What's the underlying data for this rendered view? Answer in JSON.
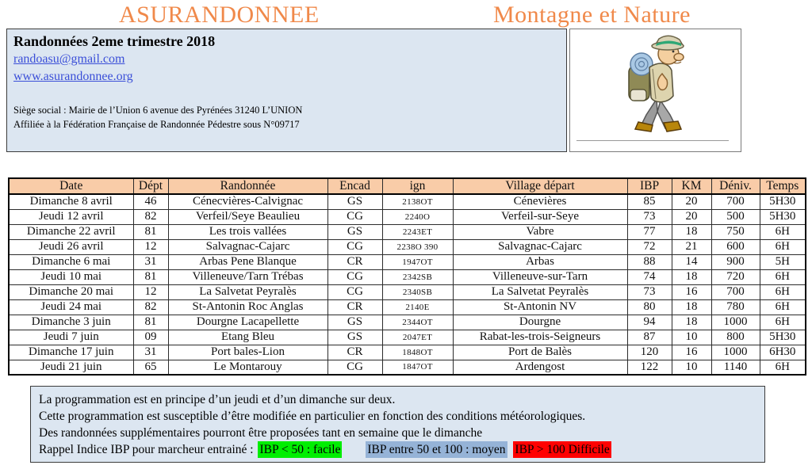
{
  "header": {
    "title_left": "ASURANDONNEE",
    "title_right": "Montagne et Nature"
  },
  "info_box": {
    "title": "Randonnées 2eme trimestre 2018",
    "email": "randoasu@gmail.com",
    "website": "www.asurandonnee.org",
    "address": "Siège social : Mairie de l’Union 6 avenue des Pyrénées 31240 L’UNION",
    "affiliation": "Affiliée à la Fédération Française de Randonnée Pédestre sous N°09717"
  },
  "illustration": {
    "description": "cartoon hiker with hat and backpack"
  },
  "table": {
    "columns": [
      "Date",
      "Dépt",
      "Randonnée",
      "Encad",
      "ign",
      "Village départ",
      "IBP",
      "KM",
      "Déniv.",
      "Temps"
    ],
    "column_keys": [
      "date",
      "dept",
      "randonnee",
      "encad",
      "ign",
      "village-depart",
      "ibp",
      "km",
      "deniv",
      "temps"
    ],
    "rows": [
      [
        "Dimanche 8 avril",
        "46",
        "Cénecvières-Calvignac",
        "GS",
        "2138OT",
        "Cénevières",
        "85",
        "20",
        "700",
        "5H30"
      ],
      [
        "Jeudi 12 avril",
        "82",
        "Verfeil/Seye  Beaulieu",
        "CG",
        "2240O",
        "Verfeil-sur-Seye",
        "73",
        "20",
        "500",
        "5H30"
      ],
      [
        "Dimanche 22 avril",
        "81",
        "Les trois vallées",
        "GS",
        "2243ET",
        "Vabre",
        "77",
        "18",
        "750",
        "6H"
      ],
      [
        "Jeudi 26 avril",
        "12",
        "Salvagnac-Cajarc",
        "CG",
        "2238O 390",
        "Salvagnac-Cajarc",
        "72",
        "21",
        "600",
        "6H"
      ],
      [
        "Dimanche 6 mai",
        "31",
        "Arbas Pene Blanque",
        "CR",
        "1947OT",
        "Arbas",
        "88",
        "14",
        "900",
        "5H"
      ],
      [
        "Jeudi 10 mai",
        "81",
        "Villeneuve/Tarn Trébas",
        "CG",
        "2342SB",
        "Villeneuve-sur-Tarn",
        "74",
        "18",
        "720",
        "6H"
      ],
      [
        "Dimanche 20 mai",
        "12",
        "La Salvetat Peyralès",
        "CG",
        "2340SB",
        "La Salvetat Peyralès",
        "73",
        "16",
        "700",
        "6H"
      ],
      [
        "Jeudi 24 mai",
        "82",
        "St-Antonin Roc Anglas",
        "CR",
        "2140E",
        "St-Antonin NV",
        "80",
        "18",
        "780",
        "6H"
      ],
      [
        "Dimanche 3 juin",
        "81",
        "Dourgne Lacapellette",
        "GS",
        "2344OT",
        "Dourgne",
        "94",
        "18",
        "1000",
        "6H"
      ],
      [
        "Jeudi 7 juin",
        "09",
        "Etang Bleu",
        "GS",
        "2047ET",
        "Rabat-les-trois-Seigneurs",
        "87",
        "10",
        "800",
        "5H30"
      ],
      [
        "Dimanche 17 juin",
        "31",
        "Port bales-Lion",
        "CR",
        "1848OT",
        "Port de Balès",
        "120",
        "16",
        "1000",
        "6H30"
      ],
      [
        "Jeudi 21 juin",
        "65",
        "Le Montarouy",
        "CG",
        "1847OT",
        "Ardengost",
        "122",
        "10",
        "1140",
        "6H"
      ]
    ]
  },
  "footer": {
    "line1": "La programmation est en principe d’un jeudi et d’un dimanche sur deux.",
    "line2": "Cette programmation est susceptible d’être modifiée en particulier en fonction des conditions météorologiques.",
    "line3": "Des randonnées supplémentaires pourront être proposées tant en semaine que le dimanche",
    "legend_prefix": "Rappel Indice IBP  pour marcheur entrainé :",
    "legend_easy": "IBP < 50 : facile",
    "legend_medium": "IBP entre 50 et 100 : moyen",
    "legend_hard": "IBP > 100 Difficile"
  },
  "colors": {
    "brand_orange": "#F0894A",
    "table_header_bg": "#F9CCA8",
    "panel_blue_bg": "#DCE6F1",
    "link_blue": "#3B4FD8",
    "legend_green": "#00EE00",
    "legend_blue": "#95B3D7",
    "legend_red": "#FF0000"
  }
}
